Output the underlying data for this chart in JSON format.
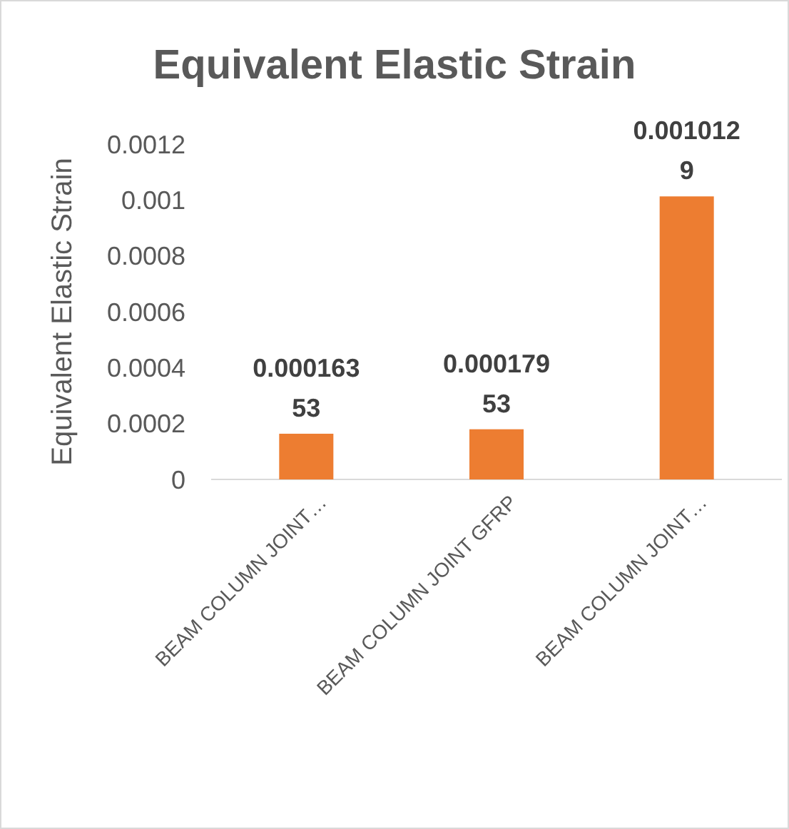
{
  "chart_data": {
    "type": "bar",
    "title": "Equivalent Elastic Strain",
    "ylabel": "Equivalent Elastic Strain",
    "categories": [
      "BEAM COLUMN JOINT…",
      "BEAM COLUMN JOINT GFRP",
      "BEAM COLUMN JOINT…"
    ],
    "values": [
      0.00016353,
      0.00017953,
      0.0010129
    ],
    "color": "#ed7d31",
    "ylim": [
      0,
      0.0012
    ],
    "yticks": [
      0,
      0.0002,
      0.0004,
      0.0006,
      0.0008,
      0.001,
      0.0012
    ],
    "data_labels": true
  }
}
